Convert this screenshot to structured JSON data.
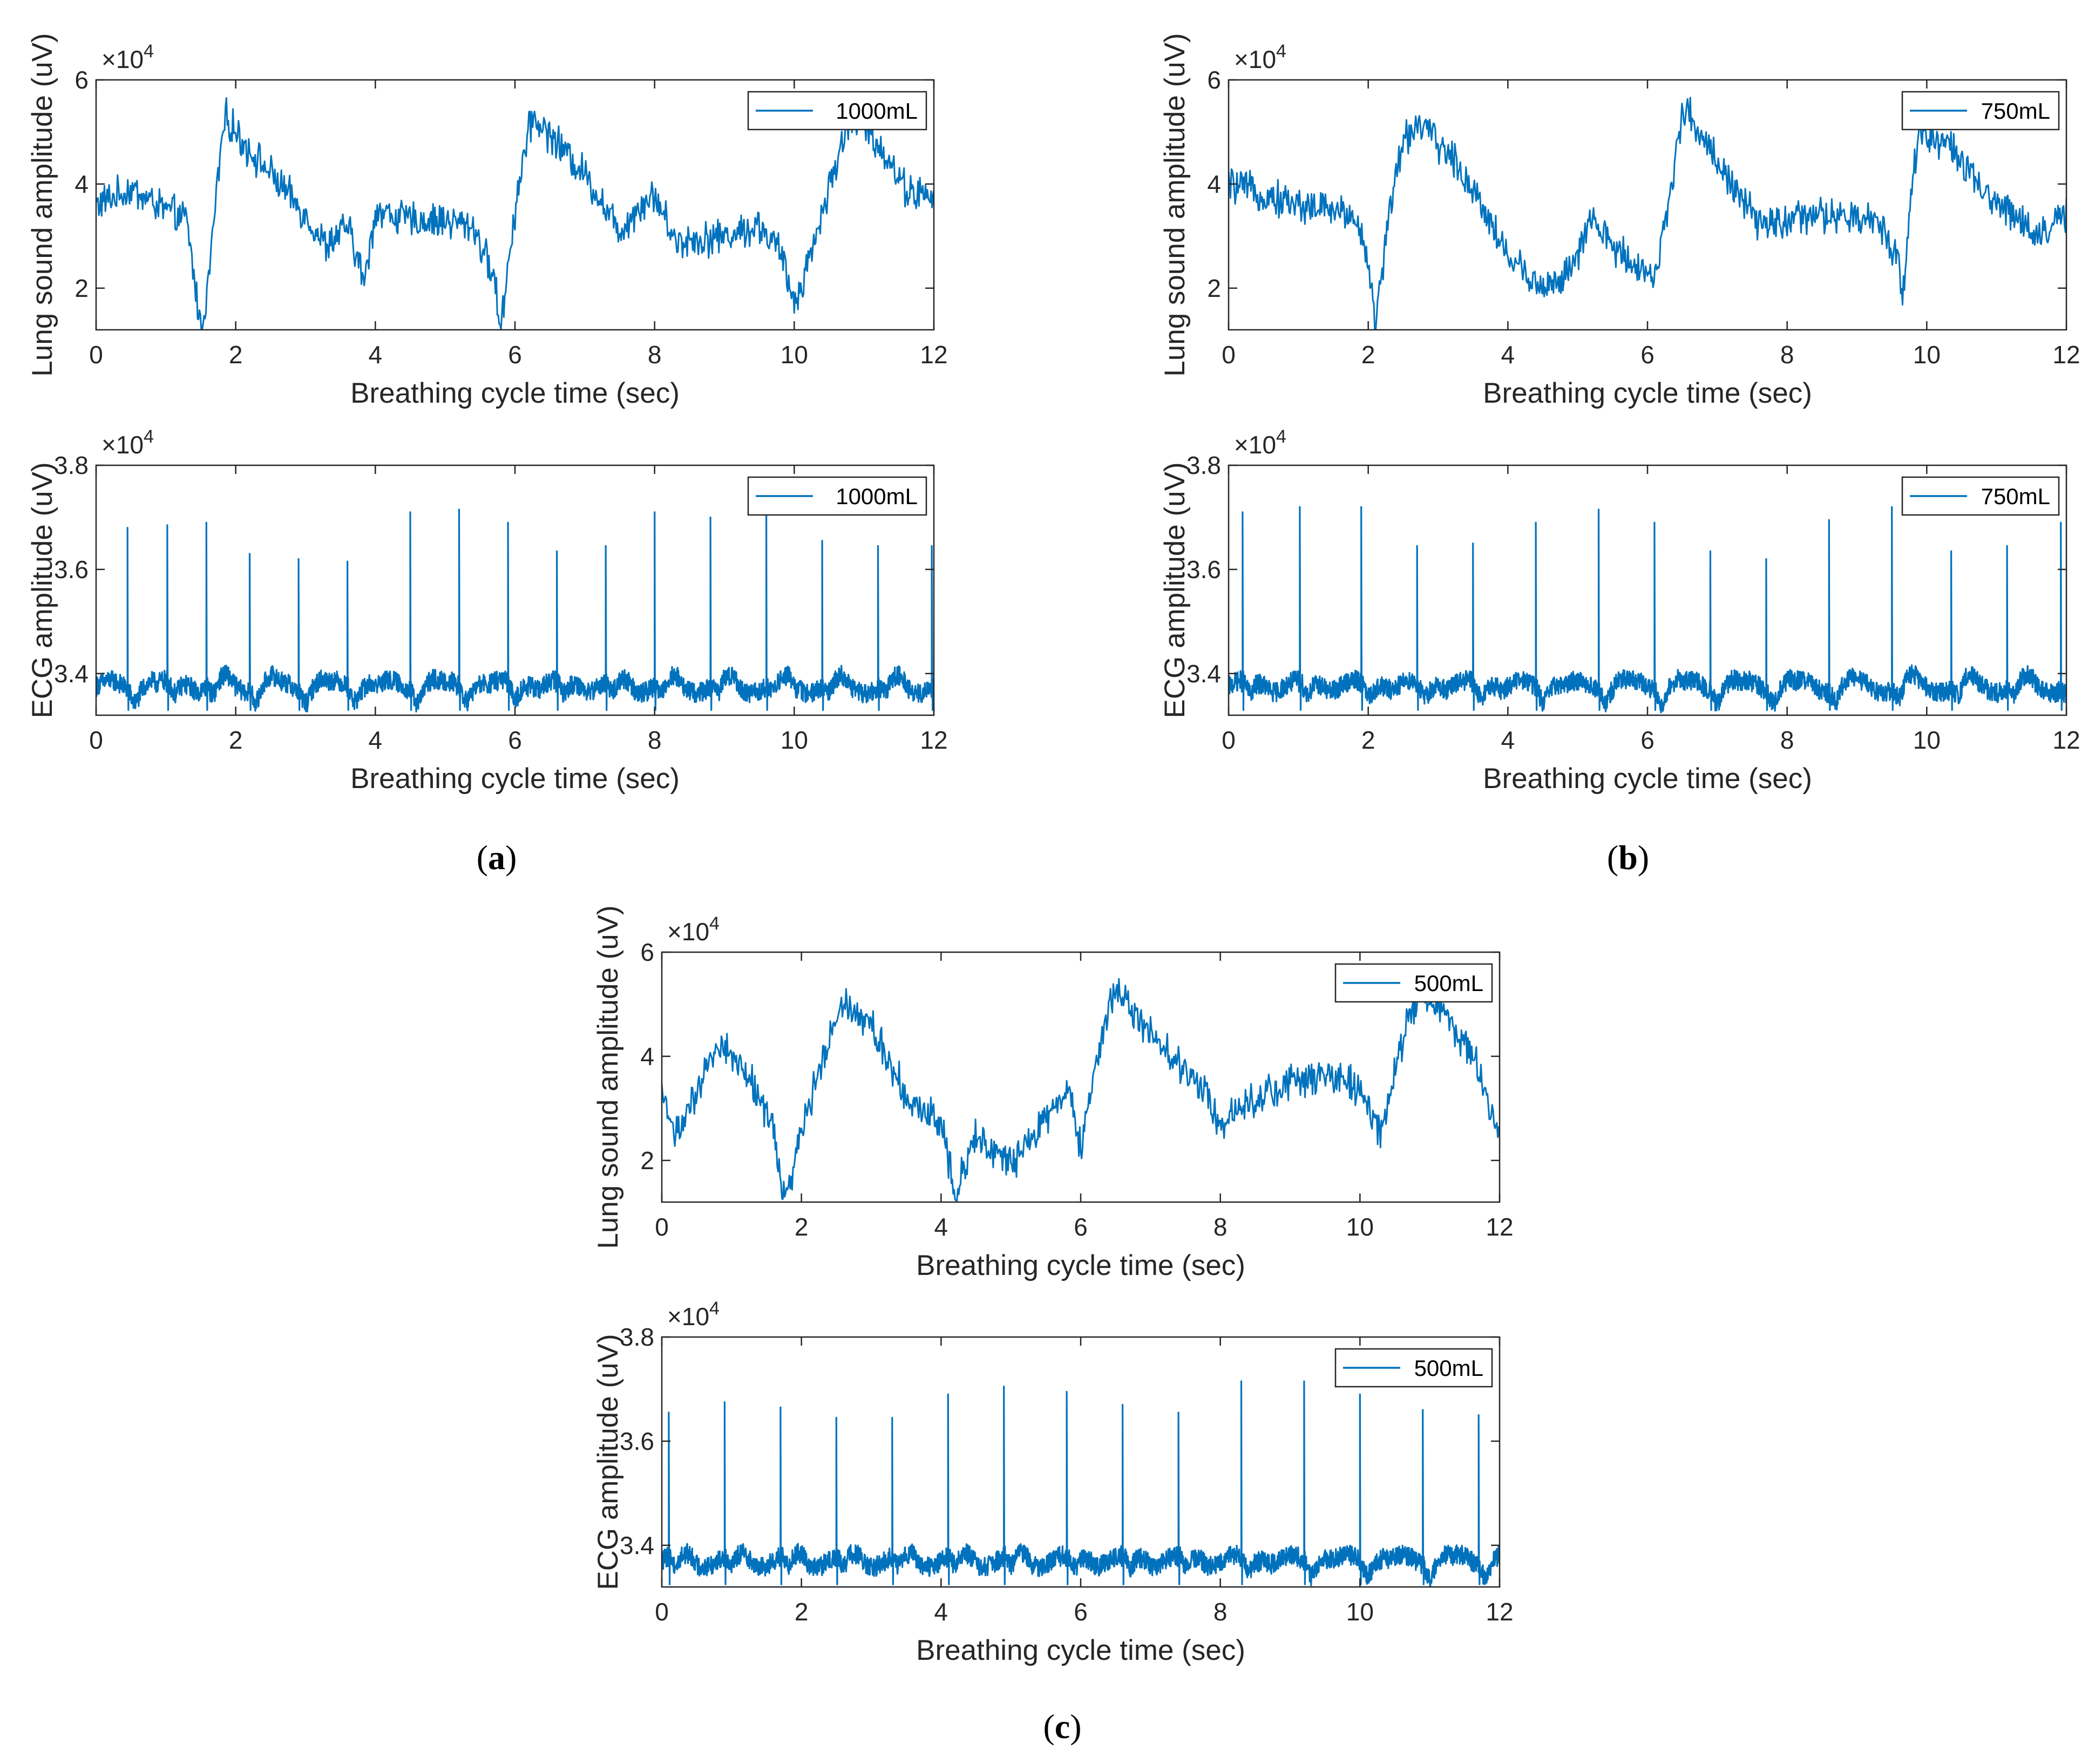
{
  "colors": {
    "line": "#0072BD",
    "axis": "#262626",
    "legend_border": "#262626"
  },
  "panels": [
    {
      "label_letter": "a",
      "label_open": "(",
      "label_close": ")"
    },
    {
      "label_letter": "b",
      "label_open": "(",
      "label_close": ")"
    },
    {
      "label_letter": "c",
      "label_open": "(",
      "label_close": ")"
    }
  ],
  "chart_data": [
    {
      "id": "a-lung",
      "panel": "a",
      "type": "line",
      "xlabel": "Breathing cycle time (sec)",
      "ylabel": "Lung sound amplitude (uV)",
      "exponent_base": "×10",
      "exponent": "4",
      "xlim": [
        0,
        12
      ],
      "ylim": [
        1.2,
        6
      ],
      "xticks": [
        0,
        2,
        4,
        6,
        8,
        10,
        12
      ],
      "yticks": [
        2,
        4,
        6
      ],
      "legend": "1000mL",
      "legend_position": "top-right",
      "signal": "lung",
      "keypoints": [
        [
          0,
          3.6
        ],
        [
          0.5,
          3.9
        ],
        [
          1.0,
          3.5
        ],
        [
          1.3,
          3.3
        ],
        [
          1.5,
          1.2
        ],
        [
          1.6,
          2.0
        ],
        [
          1.75,
          4.2
        ],
        [
          1.85,
          5.3
        ],
        [
          2.1,
          4.8
        ],
        [
          2.5,
          4.2
        ],
        [
          3.0,
          3.4
        ],
        [
          3.3,
          2.8
        ],
        [
          3.6,
          3.2
        ],
        [
          3.85,
          2.1
        ],
        [
          4.0,
          3.5
        ],
        [
          4.5,
          3.3
        ],
        [
          5.0,
          3.3
        ],
        [
          5.4,
          3.2
        ],
        [
          5.7,
          2.2
        ],
        [
          5.8,
          1.2
        ],
        [
          5.9,
          2.5
        ],
        [
          6.1,
          4.4
        ],
        [
          6.25,
          5.3
        ],
        [
          6.6,
          4.8
        ],
        [
          7.0,
          4.2
        ],
        [
          7.5,
          3.1
        ],
        [
          7.8,
          3.6
        ],
        [
          8.0,
          3.8
        ],
        [
          8.3,
          2.9
        ],
        [
          9.0,
          3.0
        ],
        [
          9.5,
          3.2
        ],
        [
          9.8,
          2.7
        ],
        [
          10.0,
          1.7
        ],
        [
          10.2,
          2.5
        ],
        [
          10.6,
          4.4
        ],
        [
          10.8,
          5.3
        ],
        [
          11.2,
          4.8
        ],
        [
          11.6,
          3.9
        ],
        [
          12,
          3.7
        ]
      ]
    },
    {
      "id": "a-ecg",
      "panel": "a",
      "type": "line",
      "xlabel": "Breathing cycle time (sec)",
      "ylabel": "ECG amplitude (uV)",
      "exponent_base": "×10",
      "exponent": "4",
      "xlim": [
        0,
        12
      ],
      "ylim": [
        3.32,
        3.8
      ],
      "xticks": [
        0,
        2,
        4,
        6,
        8,
        10,
        12
      ],
      "yticks": [
        3.4,
        3.6,
        3.8
      ],
      "legend": "1000mL",
      "legend_position": "top-right",
      "signal": "ecg",
      "baseline": 3.375,
      "beats": [
        [
          0.45,
          3.68
        ],
        [
          1.02,
          3.685
        ],
        [
          1.58,
          3.69
        ],
        [
          2.2,
          3.63
        ],
        [
          2.9,
          3.62
        ],
        [
          3.6,
          3.615
        ],
        [
          4.5,
          3.71
        ],
        [
          5.2,
          3.715
        ],
        [
          5.9,
          3.69
        ],
        [
          6.6,
          3.635
        ],
        [
          7.3,
          3.645
        ],
        [
          8.0,
          3.71
        ],
        [
          8.8,
          3.7
        ],
        [
          9.6,
          3.71
        ],
        [
          10.4,
          3.655
        ],
        [
          11.2,
          3.645
        ],
        [
          11.97,
          3.645
        ]
      ]
    },
    {
      "id": "b-lung",
      "panel": "b",
      "type": "line",
      "xlabel": "Breathing cycle time (sec)",
      "ylabel": "Lung sound amplitude (uV)",
      "exponent_base": "×10",
      "exponent": "4",
      "xlim": [
        0,
        12
      ],
      "ylim": [
        1.2,
        6
      ],
      "xticks": [
        0,
        2,
        4,
        6,
        8,
        10,
        12
      ],
      "yticks": [
        2,
        4,
        6
      ],
      "legend": "750mL",
      "legend_position": "top-right",
      "signal": "lung",
      "keypoints": [
        [
          0,
          4.0
        ],
        [
          0.5,
          3.8
        ],
        [
          1.0,
          3.6
        ],
        [
          1.5,
          3.5
        ],
        [
          1.8,
          3.4
        ],
        [
          2.0,
          2.6
        ],
        [
          2.1,
          1.2
        ],
        [
          2.3,
          3.5
        ],
        [
          2.5,
          4.8
        ],
        [
          2.7,
          5.2
        ],
        [
          3.2,
          4.5
        ],
        [
          3.6,
          3.7
        ],
        [
          4.0,
          2.6
        ],
        [
          4.5,
          2.0
        ],
        [
          4.9,
          2.3
        ],
        [
          5.2,
          3.3
        ],
        [
          5.5,
          2.8
        ],
        [
          5.8,
          2.5
        ],
        [
          6.1,
          2.2
        ],
        [
          6.3,
          3.5
        ],
        [
          6.5,
          5.5
        ],
        [
          6.8,
          4.9
        ],
        [
          7.2,
          4.0
        ],
        [
          7.6,
          3.2
        ],
        [
          8.0,
          3.3
        ],
        [
          8.5,
          3.4
        ],
        [
          9.0,
          3.3
        ],
        [
          9.3,
          3.3
        ],
        [
          9.6,
          2.6
        ],
        [
          9.65,
          1.7
        ],
        [
          9.8,
          4.2
        ],
        [
          9.9,
          5.0
        ],
        [
          10.3,
          4.8
        ],
        [
          10.8,
          3.8
        ],
        [
          11.2,
          3.5
        ],
        [
          11.6,
          3.0
        ],
        [
          12,
          3.4
        ]
      ]
    },
    {
      "id": "b-ecg",
      "panel": "b",
      "type": "line",
      "xlabel": "Breathing cycle time (sec)",
      "ylabel": "ECG amplitude (uV)",
      "exponent_base": "×10",
      "exponent": "4",
      "xlim": [
        0,
        12
      ],
      "ylim": [
        3.32,
        3.8
      ],
      "xticks": [
        0,
        2,
        4,
        6,
        8,
        10,
        12
      ],
      "yticks": [
        3.4,
        3.6,
        3.8
      ],
      "legend": "750mL",
      "legend_position": "top-right",
      "signal": "ecg",
      "baseline": 3.375,
      "beats": [
        [
          0.2,
          3.71
        ],
        [
          1.02,
          3.72
        ],
        [
          1.9,
          3.72
        ],
        [
          2.7,
          3.645
        ],
        [
          3.5,
          3.65
        ],
        [
          4.4,
          3.69
        ],
        [
          5.3,
          3.715
        ],
        [
          6.1,
          3.69
        ],
        [
          6.9,
          3.635
        ],
        [
          7.7,
          3.62
        ],
        [
          8.6,
          3.695
        ],
        [
          9.5,
          3.72
        ],
        [
          10.35,
          3.635
        ],
        [
          11.15,
          3.645
        ],
        [
          11.92,
          3.69
        ]
      ]
    },
    {
      "id": "c-lung",
      "panel": "c",
      "type": "line",
      "xlabel": "Breathing cycle time (sec)",
      "ylabel": "Lung sound amplitude (uV)",
      "exponent_base": "×10",
      "exponent": "4",
      "xlim": [
        0,
        12
      ],
      "ylim": [
        1.2,
        6
      ],
      "xticks": [
        0,
        2,
        4,
        6,
        8,
        10,
        12
      ],
      "yticks": [
        2,
        4,
        6
      ],
      "legend": "500mL",
      "legend_position": "top-right",
      "signal": "lung",
      "keypoints": [
        [
          0,
          3.3
        ],
        [
          0.2,
          2.5
        ],
        [
          0.5,
          3.2
        ],
        [
          0.8,
          4.3
        ],
        [
          1.0,
          4.0
        ],
        [
          1.3,
          3.5
        ],
        [
          1.6,
          2.6
        ],
        [
          1.75,
          1.2
        ],
        [
          2.0,
          2.5
        ],
        [
          2.3,
          4.0
        ],
        [
          2.6,
          5.1
        ],
        [
          3.0,
          4.6
        ],
        [
          3.3,
          3.8
        ],
        [
          3.6,
          3.0
        ],
        [
          4.0,
          2.8
        ],
        [
          4.2,
          1.4
        ],
        [
          4.5,
          2.5
        ],
        [
          5.0,
          1.9
        ],
        [
          5.3,
          2.4
        ],
        [
          5.8,
          3.4
        ],
        [
          6.0,
          2.2
        ],
        [
          6.2,
          3.8
        ],
        [
          6.5,
          5.4
        ],
        [
          6.8,
          4.7
        ],
        [
          7.3,
          4.0
        ],
        [
          7.8,
          3.3
        ],
        [
          8.0,
          2.7
        ],
        [
          8.5,
          3.2
        ],
        [
          9.0,
          3.5
        ],
        [
          9.5,
          3.6
        ],
        [
          10.0,
          3.4
        ],
        [
          10.3,
          2.4
        ],
        [
          10.5,
          3.7
        ],
        [
          10.7,
          4.8
        ],
        [
          10.9,
          5.3
        ],
        [
          11.3,
          4.6
        ],
        [
          11.7,
          3.8
        ],
        [
          12,
          2.5
        ]
      ]
    },
    {
      "id": "c-ecg",
      "panel": "c",
      "type": "line",
      "xlabel": "Breathing cycle time (sec)",
      "ylabel": "ECG amplitude (uV)",
      "exponent_base": "×10",
      "exponent": "4",
      "xlim": [
        0,
        12
      ],
      "ylim": [
        3.32,
        3.8
      ],
      "xticks": [
        0,
        2,
        4,
        6,
        8,
        10,
        12
      ],
      "yticks": [
        3.4,
        3.6,
        3.8
      ],
      "legend": "500mL",
      "legend_position": "top-right",
      "signal": "ecg",
      "baseline": 3.37,
      "beats": [
        [
          0.1,
          3.655
        ],
        [
          0.9,
          3.675
        ],
        [
          1.7,
          3.665
        ],
        [
          2.5,
          3.645
        ],
        [
          3.3,
          3.645
        ],
        [
          4.1,
          3.69
        ],
        [
          4.9,
          3.705
        ],
        [
          5.8,
          3.695
        ],
        [
          6.6,
          3.67
        ],
        [
          7.4,
          3.655
        ],
        [
          8.3,
          3.715
        ],
        [
          9.2,
          3.715
        ],
        [
          10.0,
          3.69
        ],
        [
          10.9,
          3.66
        ],
        [
          11.7,
          3.65
        ]
      ]
    }
  ]
}
